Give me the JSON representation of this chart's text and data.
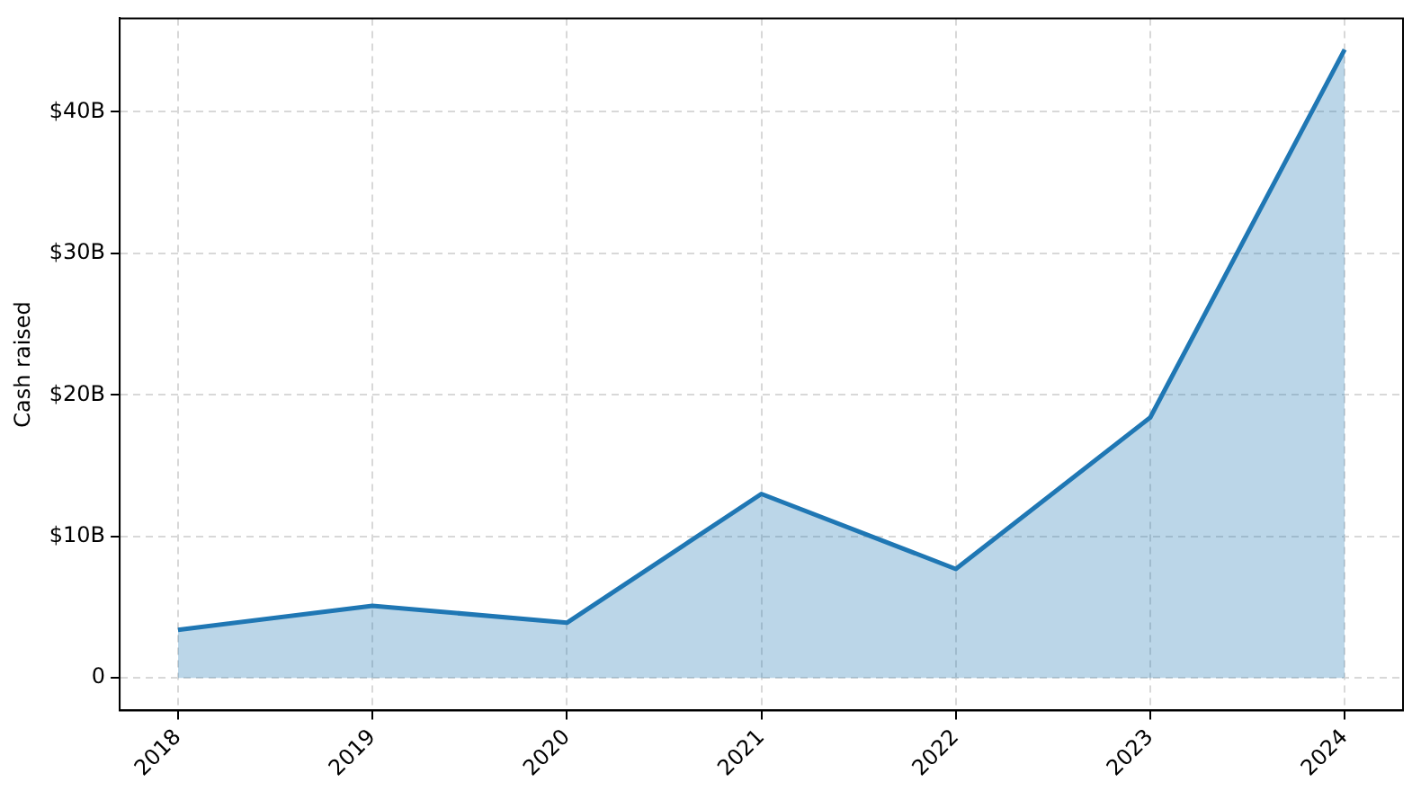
{
  "chart_data": {
    "type": "area",
    "ylabel": "Cash raised",
    "x": [
      2018,
      2019,
      2020,
      2021,
      2022,
      2023,
      2024
    ],
    "series": [
      {
        "color": "#1f77b4",
        "values": [
          3.4,
          5.1,
          3.9,
          13.0,
          7.7,
          18.4,
          44.4
        ]
      }
    ],
    "xlim": [
      2017.7,
      2024.3
    ],
    "xticks": [
      2018,
      2019,
      2020,
      2021,
      2022,
      2023,
      2024
    ],
    "ylim": [
      -2.3,
      46.6
    ],
    "yticks": [
      0,
      {
        "value": 10,
        "label": "$10B"
      },
      {
        "value": 20,
        "label": "$20B"
      },
      {
        "value": 30,
        "label": "$30B"
      },
      {
        "value": 40,
        "label": "$40B"
      }
    ],
    "grid": true,
    "line_style": "solid",
    "marker": "none"
  }
}
